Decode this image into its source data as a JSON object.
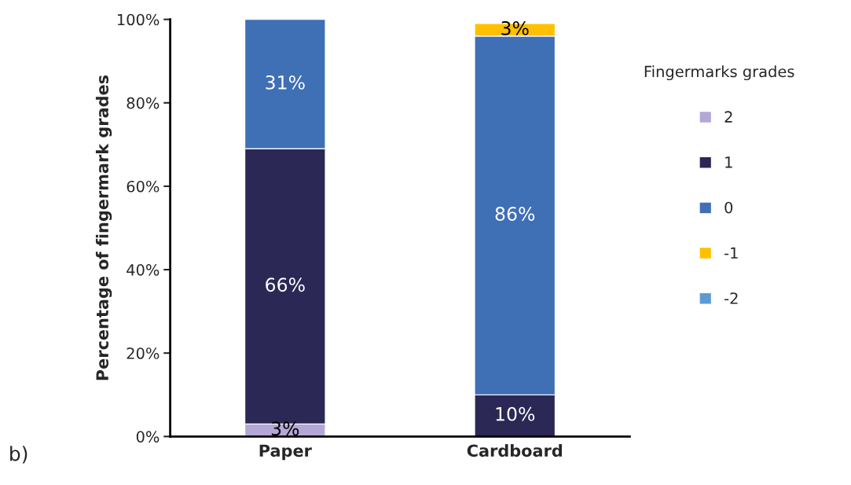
{
  "chart_data": {
    "type": "bar",
    "stacked": true,
    "categories": [
      "Paper",
      "Cardboard"
    ],
    "series": [
      {
        "name": "2",
        "color": "#b4a7d6",
        "values": [
          3,
          null
        ],
        "value_labels": [
          "3%",
          null
        ]
      },
      {
        "name": "1",
        "color": "#2b2856",
        "values": [
          66,
          10
        ],
        "value_labels": [
          "66%",
          "10%"
        ]
      },
      {
        "name": "0",
        "color": "#3f6fb5",
        "values": [
          31,
          86
        ],
        "value_labels": [
          "31%",
          "86%"
        ]
      },
      {
        "name": "-1",
        "color": "#ffc000",
        "values": [
          null,
          3
        ],
        "value_labels": [
          null,
          "3%"
        ]
      },
      {
        "name": "-2",
        "color": "#5b9bd5",
        "values": [
          null,
          null
        ]
      }
    ],
    "ylabel": "Percentage of fingermark grades",
    "legend_title": "Fingermarks grades",
    "legend": "right",
    "ylim": [
      0,
      100
    ],
    "yticks": [
      {
        "value": 0,
        "label": "0%"
      },
      {
        "value": 20,
        "label": "20%"
      },
      {
        "value": 40,
        "label": "40%"
      },
      {
        "value": 60,
        "label": "60%"
      },
      {
        "value": 80,
        "label": "80%"
      },
      {
        "value": 100,
        "label": "100%"
      }
    ],
    "grid": false,
    "annotations": [
      "b)"
    ]
  }
}
